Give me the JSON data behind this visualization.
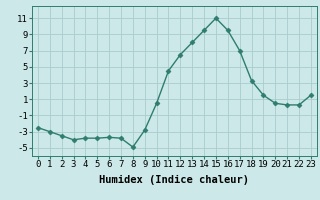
{
  "x": [
    0,
    1,
    2,
    3,
    4,
    5,
    6,
    7,
    8,
    9,
    10,
    11,
    12,
    13,
    14,
    15,
    16,
    17,
    18,
    19,
    20,
    21,
    22,
    23
  ],
  "y": [
    -2.5,
    -3.0,
    -3.5,
    -4.0,
    -3.8,
    -3.8,
    -3.7,
    -3.8,
    -4.9,
    -2.8,
    0.5,
    4.5,
    6.5,
    8.0,
    9.5,
    11.0,
    9.5,
    7.0,
    3.3,
    1.5,
    0.5,
    0.3,
    0.3,
    1.5
  ],
  "line_color": "#2e7d6e",
  "marker": "D",
  "marker_size": 2.5,
  "line_width": 1.0,
  "bg_color": "#cce8e8",
  "grid_color": "#aacccc",
  "xlabel": "Humidex (Indice chaleur)",
  "xlabel_fontsize": 7.5,
  "ylabel_ticks": [
    -5,
    -3,
    -1,
    1,
    3,
    5,
    7,
    9,
    11
  ],
  "ylim": [
    -6,
    12.5
  ],
  "xlim": [
    -0.5,
    23.5
  ],
  "tick_fontsize": 6.5
}
